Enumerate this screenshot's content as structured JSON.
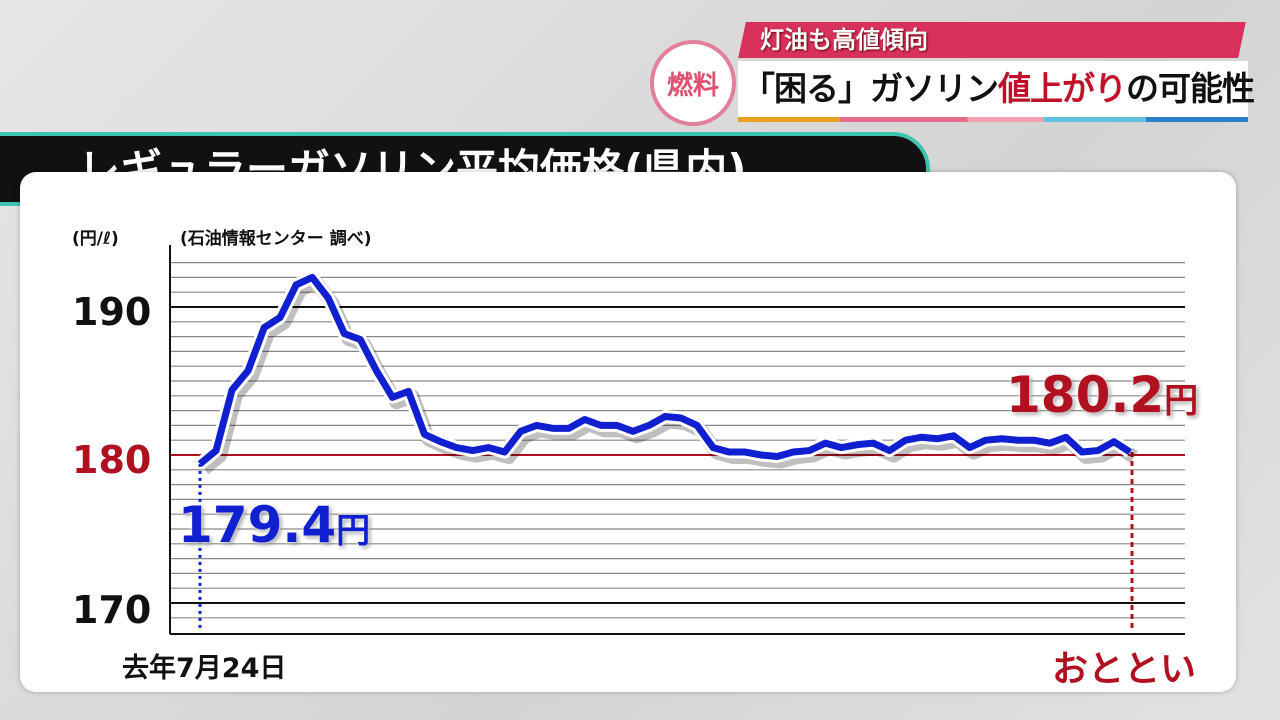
{
  "header": {
    "sub_headline": "灯油も高値傾向",
    "badge": "燃料",
    "headline_pre": "「困る」ガソリン",
    "headline_red": "値上がり",
    "headline_post": "の可能性"
  },
  "title": "レギュラーガソリン平均価格(県内)",
  "colors": {
    "line": "#1020d0",
    "reference": "#b01020",
    "sub_banner": "#d8325c",
    "title_border": "#3cc4b0"
  },
  "chart_data": {
    "type": "line",
    "title": "レギュラーガソリン平均価格(県内)",
    "ylabel": "(円/ℓ)",
    "source": "(石油情報センター 調べ)",
    "ylim": [
      168,
      194
    ],
    "yticks": [
      170,
      180,
      190
    ],
    "ytick_labels": [
      "170",
      "180",
      "190"
    ],
    "grid": true,
    "x_start_label": "去年7月24日",
    "x_end_label": "おととい",
    "start_annotation": {
      "value": "179.4",
      "unit": "円"
    },
    "end_annotation": {
      "value": "180.2",
      "unit": "円"
    },
    "reference_line": 180,
    "values": [
      179.4,
      180.3,
      184.4,
      185.7,
      188.6,
      189.3,
      191.5,
      192.0,
      190.6,
      188.2,
      187.8,
      185.7,
      183.9,
      184.3,
      181.4,
      180.9,
      180.5,
      180.3,
      180.5,
      180.2,
      181.6,
      182.0,
      181.8,
      181.8,
      182.4,
      182.0,
      182.0,
      181.6,
      182.0,
      182.6,
      182.5,
      182.0,
      180.5,
      180.2,
      180.2,
      180.0,
      179.9,
      180.2,
      180.3,
      180.8,
      180.5,
      180.7,
      180.8,
      180.3,
      181.0,
      181.2,
      181.1,
      181.3,
      180.5,
      181.0,
      181.1,
      181.0,
      181.0,
      180.8,
      181.2,
      180.2,
      180.3,
      180.9,
      180.2
    ]
  }
}
